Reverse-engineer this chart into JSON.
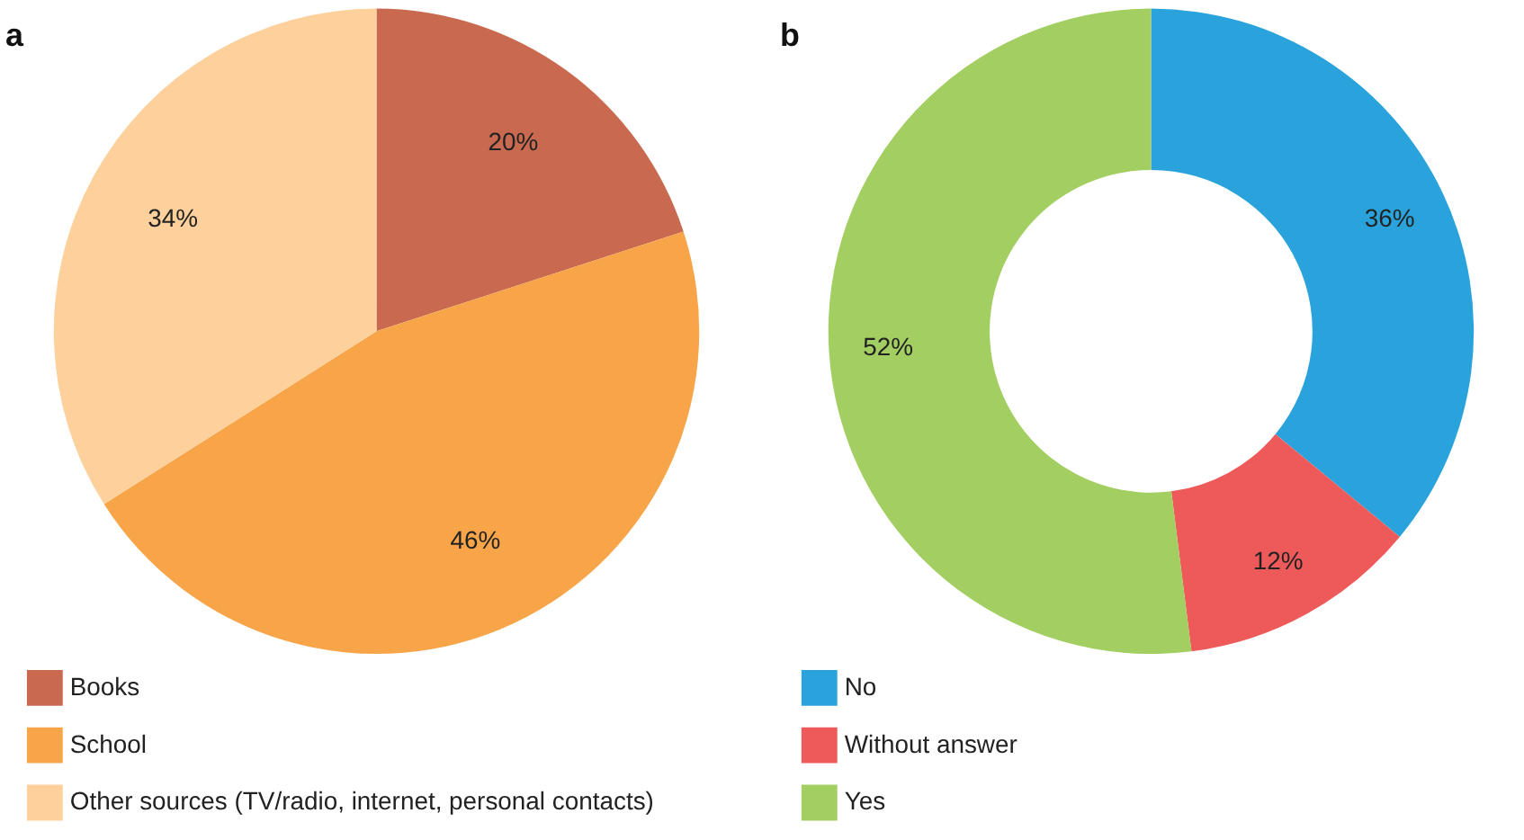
{
  "chart_data": [
    {
      "type": "pie",
      "title": "a",
      "categories": [
        "Books",
        "School",
        "Other sources (TV/radio, internet, personal contacts)"
      ],
      "values": [
        20,
        46,
        34
      ],
      "colors": [
        "#c96a50",
        "#f8a54a",
        "#fdd09c"
      ],
      "value_labels": [
        "20%",
        "46%",
        "34%"
      ],
      "legend": "bottom left"
    },
    {
      "type": "donut",
      "title": "b",
      "categories": [
        "No",
        "Without answer",
        "Yes"
      ],
      "values": [
        36,
        12,
        52
      ],
      "colors": [
        "#2aa3dc",
        "#ee5a5a",
        "#a3cf62"
      ],
      "value_labels": [
        "36%",
        "12%",
        "52%"
      ],
      "legend": "bottom left"
    }
  ]
}
